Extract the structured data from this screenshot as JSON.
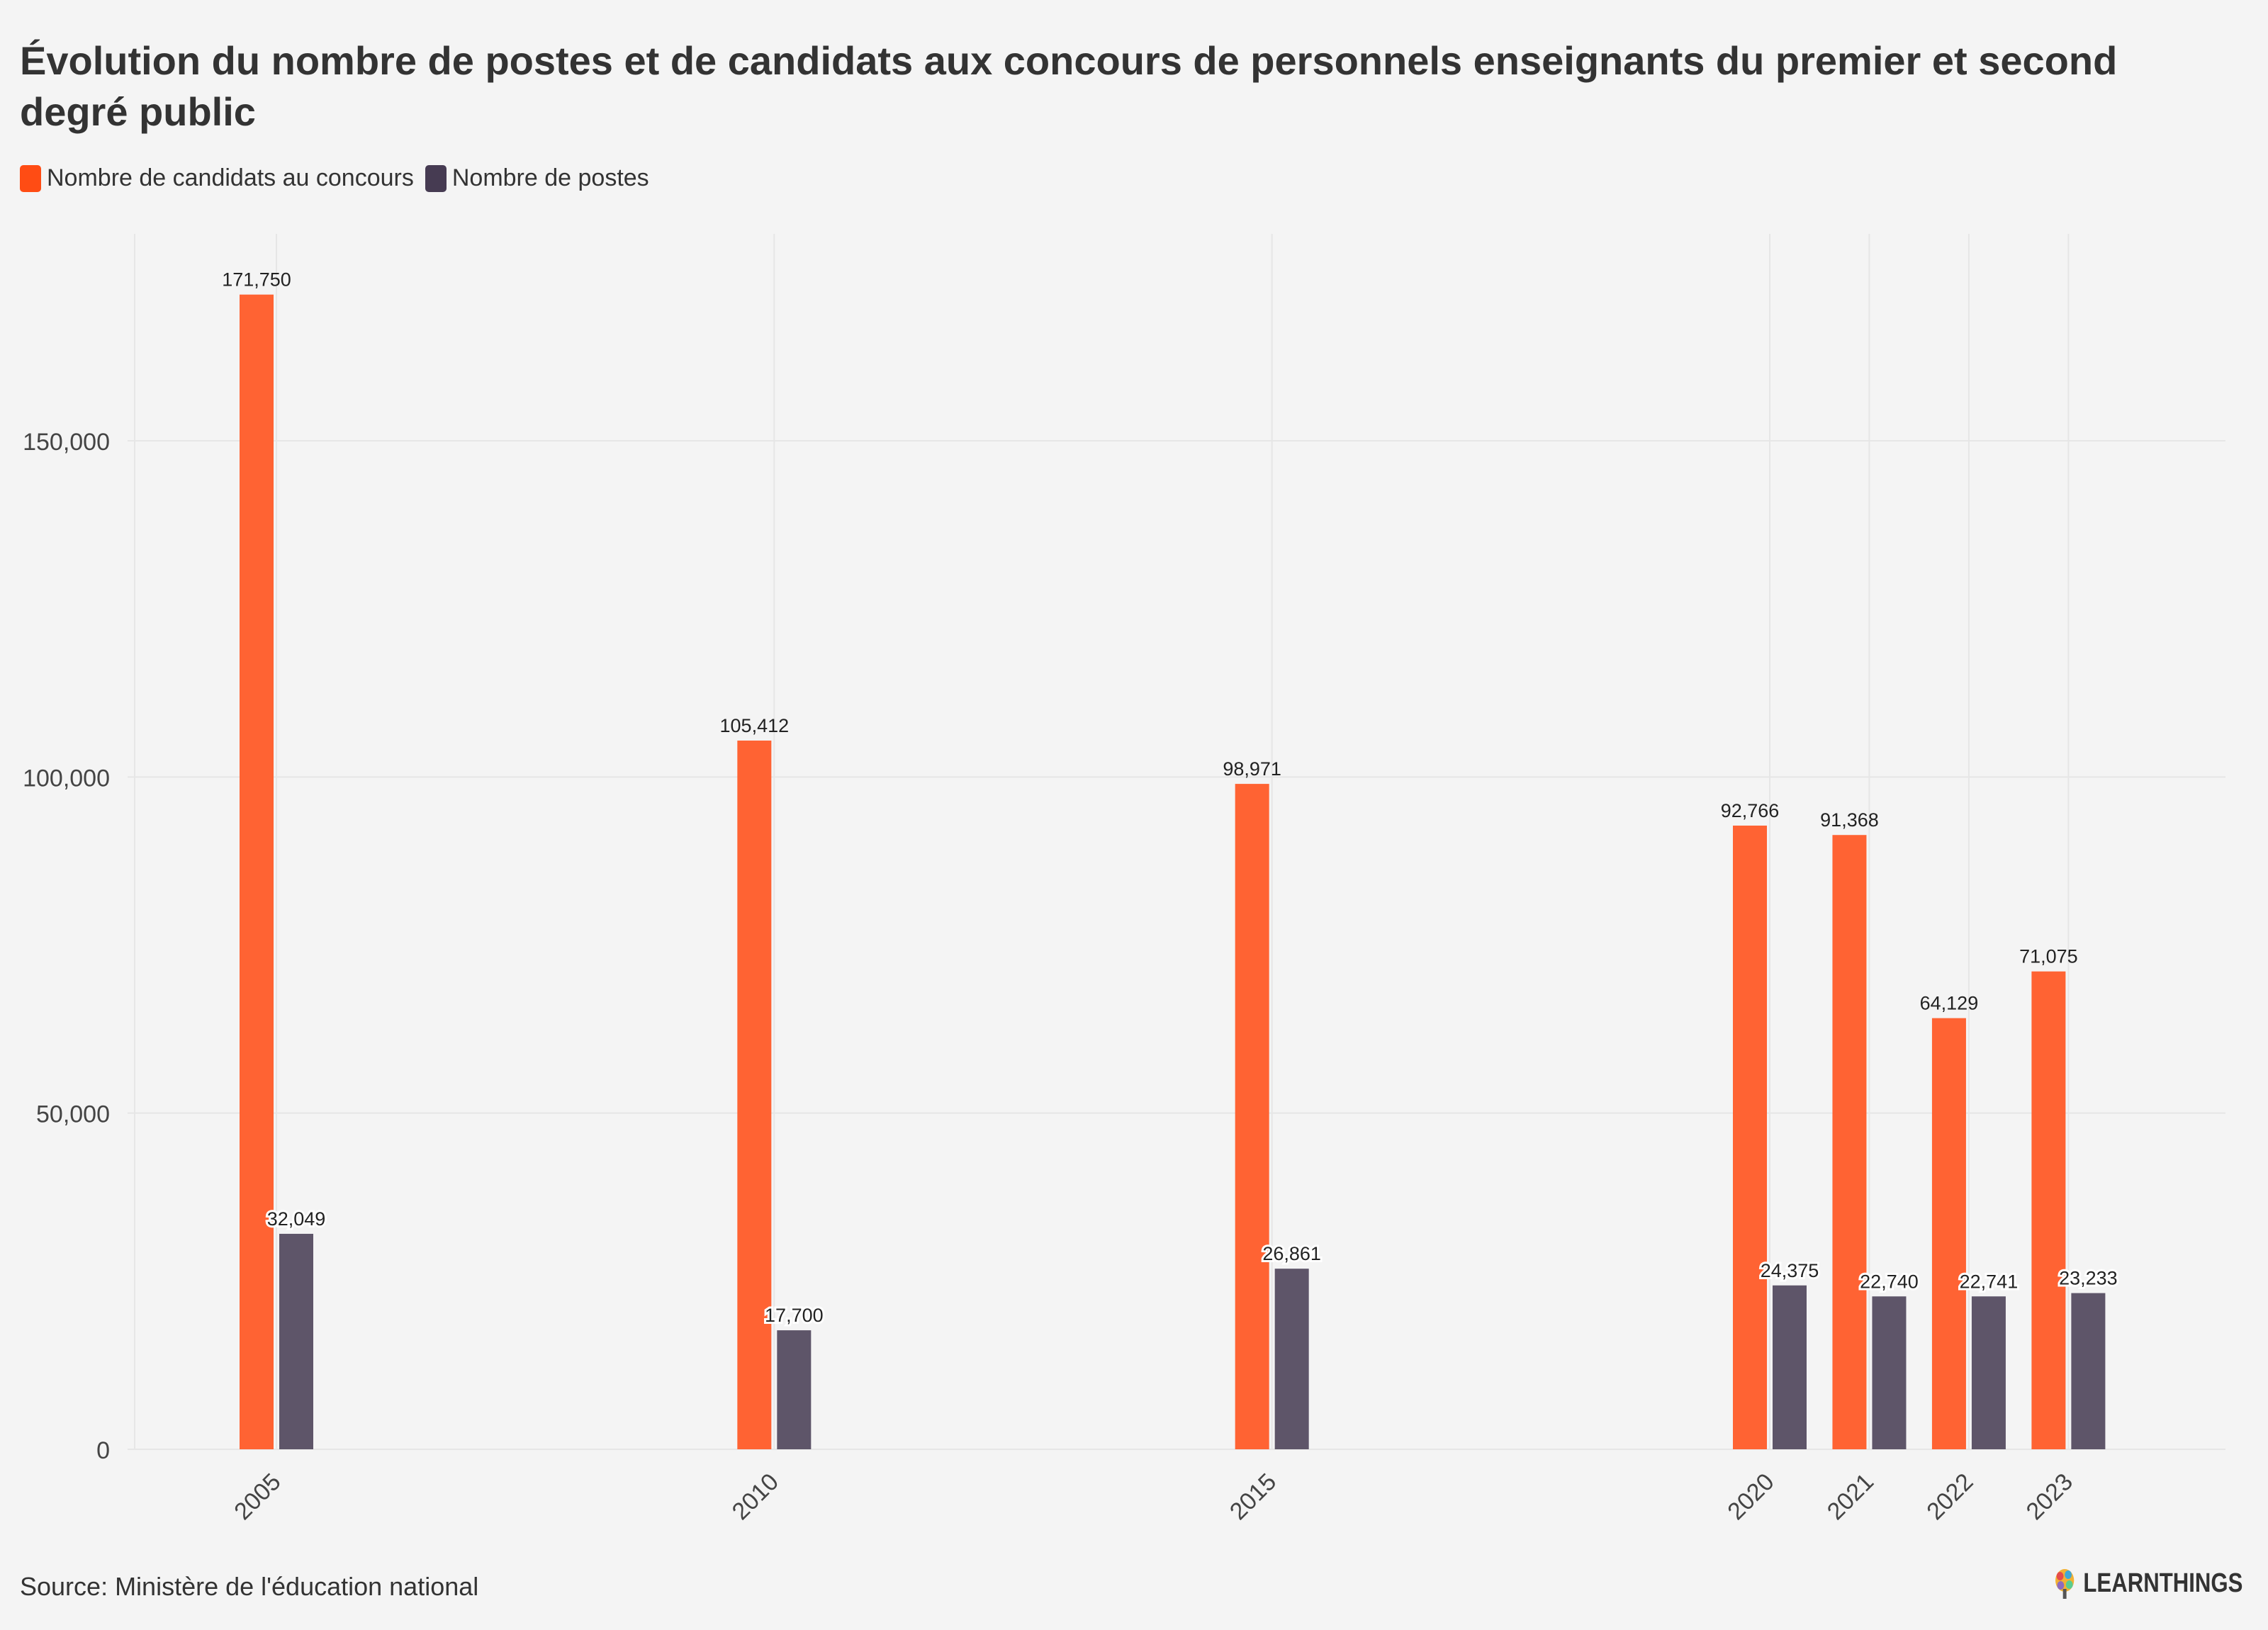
{
  "title": "Évolution du nombre de postes et de candidats aux concours de personnels enseignants du premier et second degré public",
  "source": "Source: Ministère de l'éducation national",
  "brand": "LEARNTHINGS",
  "colors": {
    "candidats": "#ff6333",
    "postes": "#5e5569",
    "grid": "#e6e6e6",
    "text": "#333333"
  },
  "chart_data": {
    "type": "bar",
    "title": "Évolution du nombre de postes et de candidats aux concours de personnels enseignants du premier et second degré public",
    "x": [
      2005,
      2010,
      2015,
      2020,
      2021,
      2022,
      2023
    ],
    "categories": [
      "2005",
      "2010",
      "2015",
      "2020",
      "2021",
      "2022",
      "2023"
    ],
    "series": [
      {
        "name": "Nombre de candidats au concours",
        "values": [
          171750,
          105412,
          98971,
          92766,
          91368,
          64129,
          71075
        ],
        "labels": [
          "171,750",
          "105,412",
          "98,971",
          "92,766",
          "91,368",
          "64,129",
          "71,075"
        ]
      },
      {
        "name": "Nombre de postes",
        "values": [
          32049,
          17700,
          26861,
          24375,
          22740,
          22741,
          23233
        ],
        "labels": [
          "32,049",
          "17,700",
          "26,861",
          "24,375",
          "22,740",
          "22,741",
          "23,233"
        ]
      }
    ],
    "yticks": [
      0,
      50000,
      100000,
      150000
    ],
    "ytick_labels": [
      "0",
      "50,000",
      "100,000",
      "150,000"
    ],
    "ylim": [
      0,
      180000
    ],
    "xlim": [
      2003.6,
      2024.5
    ],
    "grid": true,
    "legend_position": "top-left",
    "xlabel": "",
    "ylabel": ""
  }
}
